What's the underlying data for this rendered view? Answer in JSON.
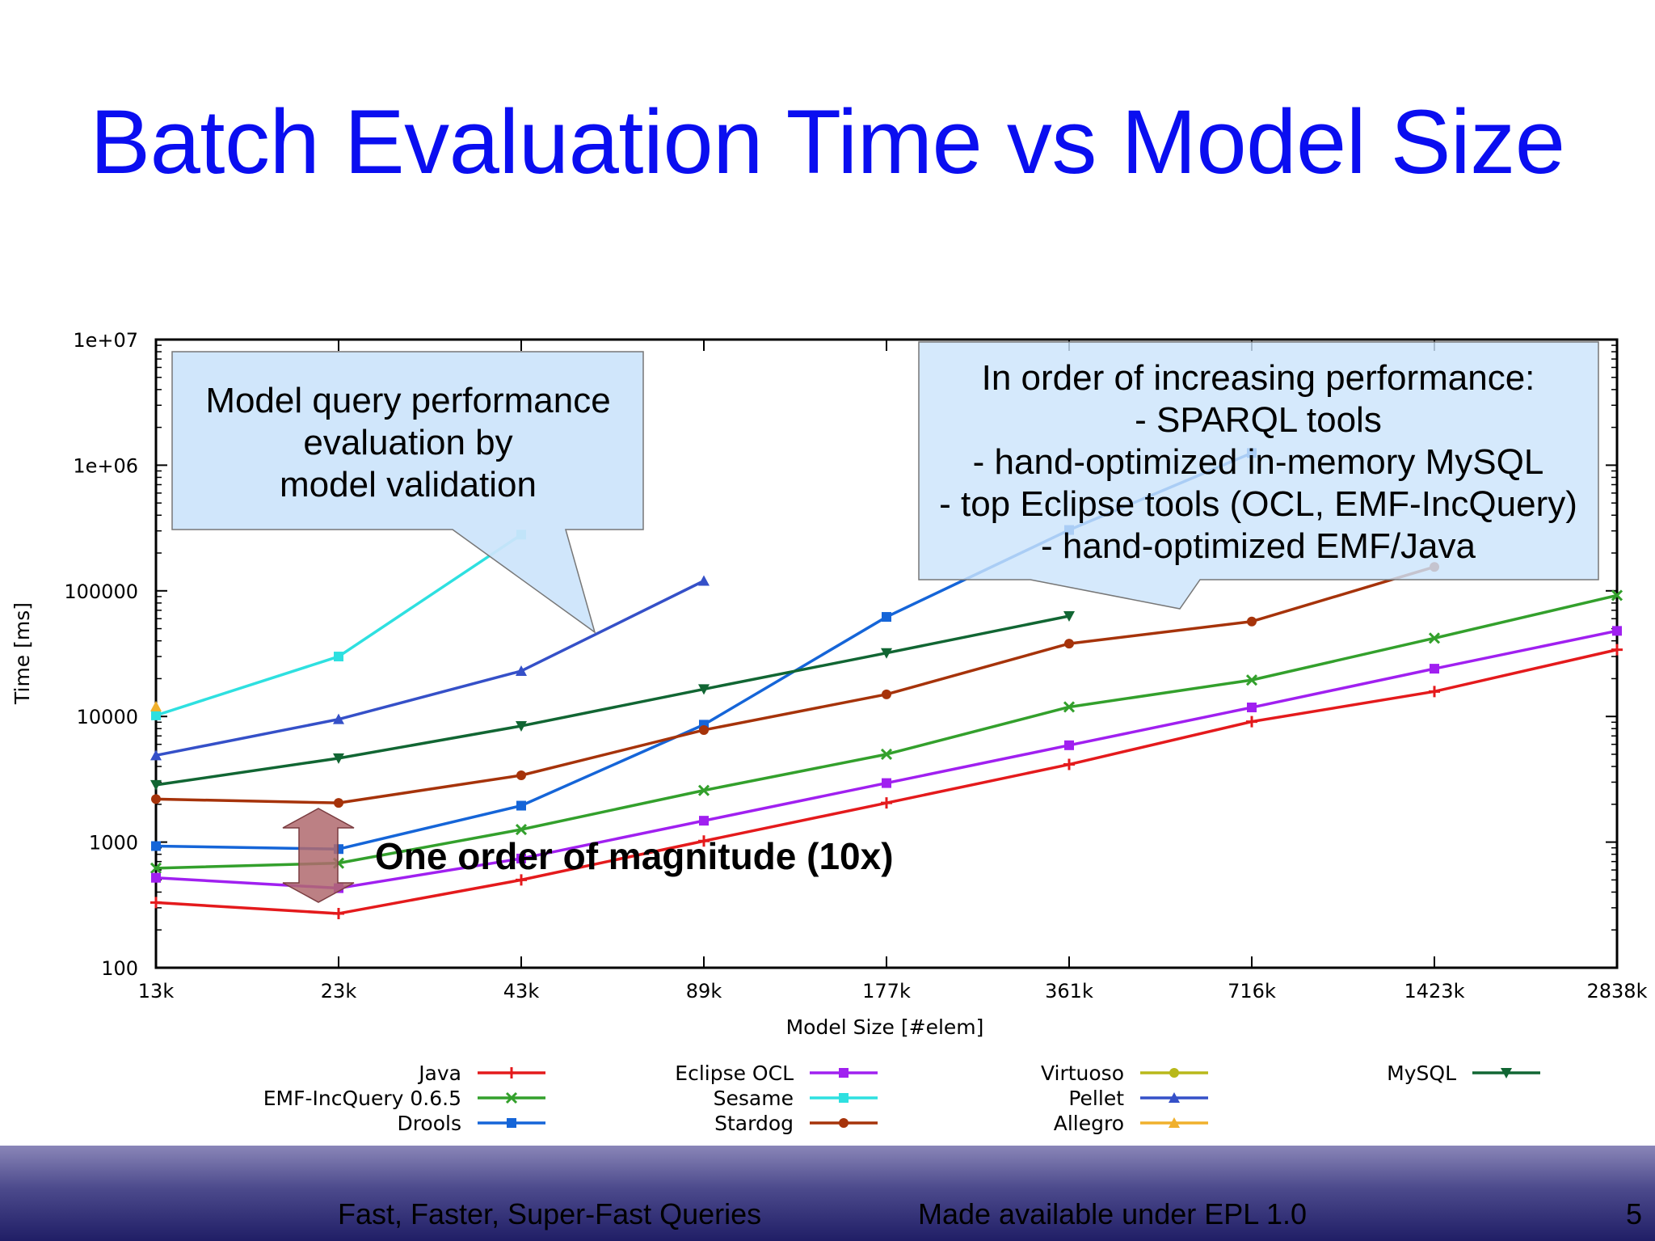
{
  "slide": {
    "title": "Batch Evaluation Time vs Model Size",
    "footer_left": "Fast, Faster, Super-Fast Queries",
    "footer_center": "Made available under EPL 1.0",
    "page_number": "5"
  },
  "callouts": {
    "left": [
      "Model query performance",
      "evaluation by",
      "model validation"
    ],
    "right": [
      "In order of increasing performance:",
      "- SPARQL tools",
      "- hand-optimized in-memory MySQL",
      "- top Eclipse tools (OCL, EMF-IncQuery)",
      "- hand-optimized EMF/Java"
    ],
    "magnitude": "One order of magnitude (10x)"
  },
  "chart_data": {
    "type": "line",
    "xlabel": "Model Size [#elem]",
    "ylabel": "Time [ms]",
    "y_scale": "log",
    "ylim": [
      100,
      10000000
    ],
    "y_ticks": [
      "100",
      "1000",
      "10000",
      "100000",
      "1e+06",
      "1e+07"
    ],
    "categories": [
      "13k",
      "23k",
      "43k",
      "89k",
      "177k",
      "361k",
      "716k",
      "1423k",
      "2838k"
    ],
    "legend_position": "bottom",
    "series": [
      {
        "name": "Java",
        "color": "#e41a1c",
        "marker": "plus",
        "values": [
          330,
          270,
          500,
          1020,
          2050,
          4150,
          9100,
          15800,
          34000
        ]
      },
      {
        "name": "EMF-IncQuery 0.6.5",
        "color": "#33a02c",
        "marker": "x",
        "values": [
          620,
          680,
          1260,
          2580,
          5000,
          11900,
          19500,
          42000,
          92000
        ]
      },
      {
        "name": "Drools",
        "color": "#1565d8",
        "marker": "square",
        "values": [
          930,
          880,
          1950,
          8600,
          62000,
          305000,
          1250000,
          null,
          null
        ]
      },
      {
        "name": "Eclipse OCL",
        "color": "#a020f0",
        "marker": "square",
        "values": [
          520,
          430,
          740,
          1480,
          2950,
          5900,
          11800,
          24000,
          48000
        ]
      },
      {
        "name": "Sesame",
        "color": "#2ee0e0",
        "marker": "square",
        "values": [
          10200,
          30000,
          280000,
          null,
          null,
          null,
          null,
          null,
          null
        ]
      },
      {
        "name": "Stardog",
        "color": "#a6330a",
        "marker": "circle",
        "values": [
          2200,
          2050,
          3400,
          7800,
          15000,
          38000,
          57000,
          155000,
          null
        ]
      },
      {
        "name": "Virtuoso",
        "color": "#b8b81a",
        "marker": "circle",
        "values": [
          null,
          null,
          null,
          null,
          null,
          null,
          null,
          null,
          null
        ]
      },
      {
        "name": "Pellet",
        "color": "#3550c8",
        "marker": "triangle",
        "values": [
          4900,
          9500,
          23000,
          120000,
          null,
          null,
          null,
          null,
          null
        ]
      },
      {
        "name": "Allegro",
        "color": "#f0b02c",
        "marker": "triangle",
        "values": [
          12000,
          null,
          null,
          null,
          null,
          null,
          null,
          null,
          null
        ]
      },
      {
        "name": "MySQL",
        "color": "#116633",
        "marker": "triangle-down",
        "values": [
          2850,
          4650,
          8400,
          16500,
          32000,
          63000,
          null,
          null,
          null
        ]
      }
    ]
  }
}
